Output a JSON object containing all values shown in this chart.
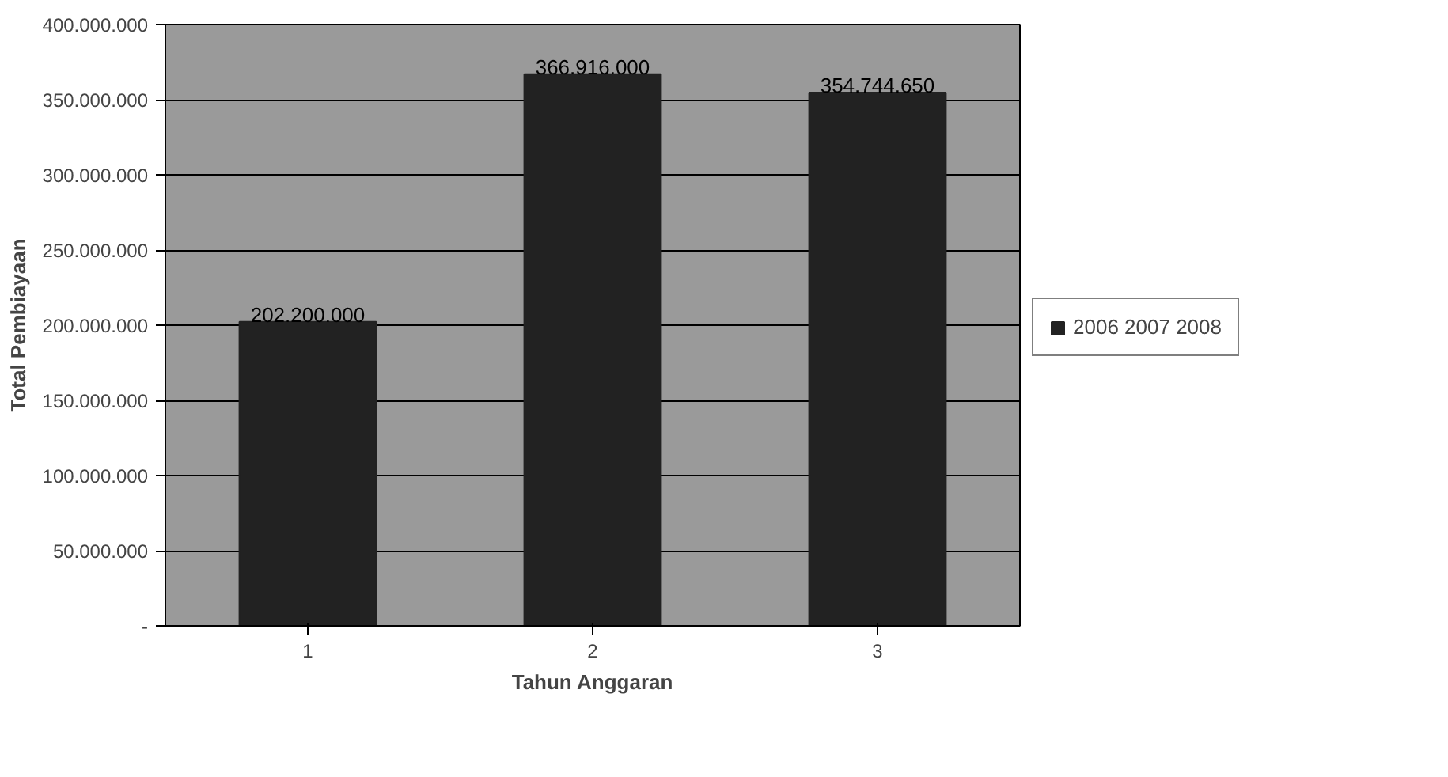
{
  "chart_data": {
    "type": "bar",
    "xlabel": "Tahun Anggaran",
    "ylabel": "Total Pembiayaan",
    "categories": [
      "1",
      "2",
      "3"
    ],
    "series": [
      {
        "name": "2006 2007 2008",
        "color": "#222222",
        "values": [
          202200000,
          366916000,
          354744650
        ]
      }
    ],
    "ylim": [
      0,
      400000000
    ],
    "yticks": [
      {
        "value": 0,
        "label": "-"
      },
      {
        "value": 50000000,
        "label": "50.000.000"
      },
      {
        "value": 100000000,
        "label": "100.000.000"
      },
      {
        "value": 150000000,
        "label": "150.000.000"
      },
      {
        "value": 200000000,
        "label": "200.000.000"
      },
      {
        "value": 250000000,
        "label": "250.000.000"
      },
      {
        "value": 300000000,
        "label": "300.000.000"
      },
      {
        "value": 350000000,
        "label": "350.000.000"
      },
      {
        "value": 400000000,
        "label": "400.000.000"
      }
    ],
    "value_labels": [
      "202.200.000",
      "366.916.000",
      "354.744.650"
    ],
    "grid": "y",
    "legend": "right"
  }
}
